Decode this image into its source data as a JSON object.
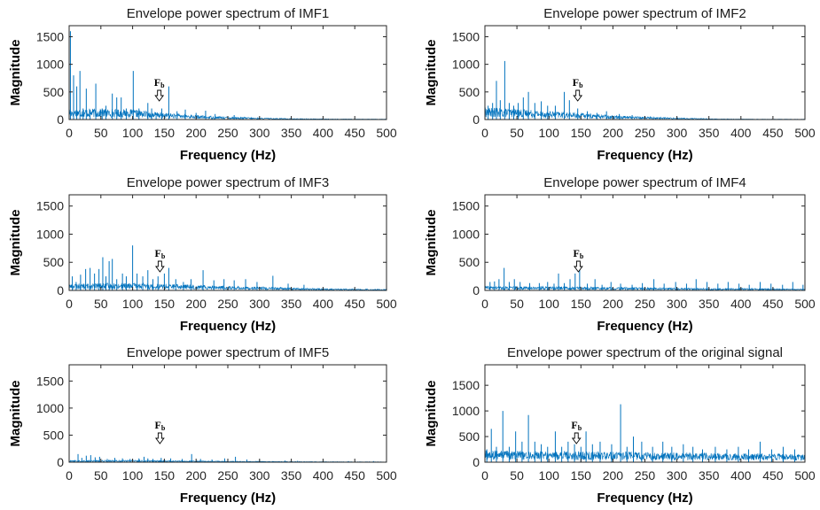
{
  "chart_data": [
    {
      "type": "line",
      "title": "Envelope power spectrum of IMF1",
      "xlabel": "Frequency (Hz)",
      "ylabel": "Magnitude",
      "xlim": [
        0,
        500
      ],
      "ylim": [
        0,
        1700
      ],
      "xticks": [
        "0",
        "50",
        "100",
        "150",
        "200",
        "250",
        "300",
        "350",
        "400",
        "450",
        "500"
      ],
      "yticks": [
        "0",
        "500",
        "1000",
        "1500"
      ],
      "color": "#0072bd",
      "noise_floor": [
        [
          0,
          160
        ],
        [
          50,
          150
        ],
        [
          100,
          140
        ],
        [
          150,
          95
        ],
        [
          200,
          60
        ],
        [
          250,
          40
        ],
        [
          300,
          25
        ],
        [
          350,
          15
        ],
        [
          400,
          10
        ],
        [
          450,
          8
        ],
        [
          500,
          6
        ]
      ],
      "peaks": [
        [
          2,
          1600
        ],
        [
          7,
          800
        ],
        [
          12,
          600
        ],
        [
          17,
          880
        ],
        [
          22,
          200
        ],
        [
          27,
          560
        ],
        [
          33,
          180
        ],
        [
          42,
          650
        ],
        [
          52,
          200
        ],
        [
          58,
          250
        ],
        [
          68,
          470
        ],
        [
          75,
          400
        ],
        [
          82,
          400
        ],
        [
          90,
          200
        ],
        [
          101,
          880
        ],
        [
          110,
          200
        ],
        [
          124,
          300
        ],
        [
          130,
          200
        ],
        [
          137,
          120
        ],
        [
          146,
          200
        ],
        [
          157,
          600
        ],
        [
          170,
          150
        ],
        [
          183,
          180
        ],
        [
          200,
          120
        ],
        [
          215,
          160
        ],
        [
          230,
          100
        ],
        [
          260,
          80
        ]
      ],
      "annotation": {
        "label": "F",
        "sub": "b",
        "x": 142
      }
    },
    {
      "type": "line",
      "title": "Envelope power spectrum of IMF2",
      "xlabel": "Frequency (Hz)",
      "ylabel": "Magnitude",
      "xlim": [
        0,
        500
      ],
      "ylim": [
        0,
        1700
      ],
      "xticks": [
        "0",
        "50",
        "100",
        "150",
        "200",
        "250",
        "300",
        "350",
        "400",
        "450",
        "500"
      ],
      "yticks": [
        "0",
        "500",
        "1000",
        "1500"
      ],
      "color": "#0072bd",
      "noise_floor": [
        [
          0,
          170
        ],
        [
          50,
          150
        ],
        [
          100,
          120
        ],
        [
          150,
          90
        ],
        [
          200,
          60
        ],
        [
          250,
          40
        ],
        [
          300,
          25
        ],
        [
          350,
          12
        ],
        [
          400,
          8
        ],
        [
          450,
          6
        ],
        [
          500,
          5
        ]
      ],
      "peaks": [
        [
          5,
          250
        ],
        [
          12,
          300
        ],
        [
          18,
          700
        ],
        [
          24,
          350
        ],
        [
          31,
          1060
        ],
        [
          38,
          300
        ],
        [
          45,
          250
        ],
        [
          52,
          300
        ],
        [
          60,
          400
        ],
        [
          68,
          500
        ],
        [
          78,
          300
        ],
        [
          88,
          330
        ],
        [
          98,
          250
        ],
        [
          110,
          250
        ],
        [
          124,
          500
        ],
        [
          132,
          350
        ],
        [
          145,
          200
        ],
        [
          160,
          150
        ],
        [
          175,
          120
        ],
        [
          190,
          150
        ],
        [
          210,
          100
        ],
        [
          230,
          80
        ]
      ],
      "annotation": {
        "label": "F",
        "sub": "b",
        "x": 145
      }
    },
    {
      "type": "line",
      "title": "Envelope power spectrum of IMF3",
      "xlabel": "Frequency (Hz)",
      "ylabel": "Magnitude",
      "xlim": [
        0,
        500
      ],
      "ylim": [
        0,
        1700
      ],
      "xticks": [
        "0",
        "50",
        "100",
        "150",
        "200",
        "250",
        "300",
        "350",
        "400",
        "450",
        "500"
      ],
      "yticks": [
        "0",
        "500",
        "1000",
        "1500"
      ],
      "color": "#0072bd",
      "noise_floor": [
        [
          0,
          90
        ],
        [
          50,
          100
        ],
        [
          100,
          100
        ],
        [
          150,
          90
        ],
        [
          200,
          80
        ],
        [
          250,
          60
        ],
        [
          300,
          50
        ],
        [
          350,
          35
        ],
        [
          400,
          25
        ],
        [
          450,
          20
        ],
        [
          500,
          15
        ]
      ],
      "peaks": [
        [
          5,
          250
        ],
        [
          11,
          150
        ],
        [
          18,
          280
        ],
        [
          26,
          380
        ],
        [
          33,
          400
        ],
        [
          40,
          300
        ],
        [
          47,
          380
        ],
        [
          53,
          590
        ],
        [
          58,
          250
        ],
        [
          63,
          520
        ],
        [
          68,
          560
        ],
        [
          75,
          200
        ],
        [
          84,
          300
        ],
        [
          90,
          250
        ],
        [
          100,
          800
        ],
        [
          107,
          300
        ],
        [
          116,
          250
        ],
        [
          124,
          360
        ],
        [
          132,
          200
        ],
        [
          140,
          250
        ],
        [
          150,
          300
        ],
        [
          157,
          400
        ],
        [
          168,
          200
        ],
        [
          180,
          150
        ],
        [
          192,
          200
        ],
        [
          211,
          360
        ],
        [
          228,
          180
        ],
        [
          244,
          200
        ],
        [
          260,
          180
        ],
        [
          278,
          200
        ],
        [
          296,
          150
        ],
        [
          321,
          260
        ],
        [
          345,
          120
        ],
        [
          370,
          100
        ]
      ],
      "annotation": {
        "label": "F",
        "sub": "b",
        "x": 143
      }
    },
    {
      "type": "line",
      "title": "Envelope power spectrum of IMF4",
      "xlabel": "Frequency (Hz)",
      "ylabel": "Magnitude",
      "xlim": [
        0,
        500
      ],
      "ylim": [
        0,
        1700
      ],
      "xticks": [
        "0",
        "50",
        "100",
        "150",
        "200",
        "250",
        "300",
        "350",
        "400",
        "450",
        "500"
      ],
      "yticks": [
        "0",
        "500",
        "1000",
        "1500"
      ],
      "color": "#0072bd",
      "noise_floor": [
        [
          0,
          60
        ],
        [
          50,
          55
        ],
        [
          100,
          55
        ],
        [
          150,
          50
        ],
        [
          200,
          45
        ],
        [
          250,
          40
        ],
        [
          300,
          35
        ],
        [
          350,
          30
        ],
        [
          400,
          30
        ],
        [
          450,
          25
        ],
        [
          500,
          20
        ]
      ],
      "peaks": [
        [
          8,
          150
        ],
        [
          15,
          160
        ],
        [
          22,
          200
        ],
        [
          30,
          400
        ],
        [
          38,
          150
        ],
        [
          46,
          200
        ],
        [
          55,
          150
        ],
        [
          70,
          130
        ],
        [
          85,
          130
        ],
        [
          98,
          150
        ],
        [
          108,
          120
        ],
        [
          115,
          300
        ],
        [
          124,
          130
        ],
        [
          133,
          200
        ],
        [
          141,
          300
        ],
        [
          148,
          380
        ],
        [
          160,
          120
        ],
        [
          172,
          200
        ],
        [
          183,
          100
        ],
        [
          197,
          150
        ],
        [
          212,
          120
        ],
        [
          230,
          100
        ],
        [
          246,
          130
        ],
        [
          264,
          200
        ],
        [
          280,
          120
        ],
        [
          298,
          150
        ],
        [
          315,
          120
        ],
        [
          330,
          200
        ],
        [
          347,
          150
        ],
        [
          364,
          120
        ],
        [
          380,
          150
        ],
        [
          397,
          120
        ],
        [
          413,
          100
        ],
        [
          430,
          150
        ],
        [
          447,
          120
        ],
        [
          465,
          100
        ],
        [
          481,
          150
        ],
        [
          497,
          100
        ]
      ],
      "annotation": {
        "label": "F",
        "sub": "b",
        "x": 146
      }
    },
    {
      "type": "line",
      "title": "Envelope power spectrum of IMF5",
      "xlabel": "Frequency (Hz)",
      "ylabel": "Magnitude",
      "xlim": [
        0,
        500
      ],
      "ylim": [
        0,
        1800
      ],
      "xticks": [
        "0",
        "50",
        "100",
        "150",
        "200",
        "250",
        "300",
        "350",
        "400",
        "450",
        "500"
      ],
      "yticks": [
        "0",
        "500",
        "1000",
        "1500"
      ],
      "color": "#0072bd",
      "noise_floor": [
        [
          0,
          25
        ],
        [
          50,
          30
        ],
        [
          100,
          30
        ],
        [
          150,
          25
        ],
        [
          200,
          20
        ],
        [
          250,
          15
        ],
        [
          300,
          12
        ],
        [
          350,
          10
        ],
        [
          400,
          8
        ],
        [
          450,
          6
        ],
        [
          500,
          5
        ]
      ],
      "peaks": [
        [
          14,
          150
        ],
        [
          20,
          80
        ],
        [
          27,
          120
        ],
        [
          34,
          130
        ],
        [
          41,
          90
        ],
        [
          48,
          100
        ],
        [
          60,
          60
        ],
        [
          72,
          80
        ],
        [
          84,
          70
        ],
        [
          96,
          60
        ],
        [
          110,
          70
        ],
        [
          118,
          100
        ],
        [
          124,
          70
        ],
        [
          132,
          60
        ],
        [
          145,
          80
        ],
        [
          160,
          70
        ],
        [
          178,
          60
        ],
        [
          193,
          150
        ],
        [
          207,
          60
        ],
        [
          225,
          50
        ],
        [
          245,
          70
        ],
        [
          262,
          100
        ],
        [
          280,
          50
        ],
        [
          300,
          40
        ],
        [
          340,
          30
        ],
        [
          360,
          25
        ],
        [
          400,
          20
        ],
        [
          440,
          20
        ],
        [
          480,
          20
        ]
      ],
      "annotation": {
        "label": "F",
        "sub": "b",
        "x": 143
      }
    },
    {
      "type": "line",
      "title": "Envelope power spectrum of the original signal",
      "xlabel": "Frequency (Hz)",
      "ylabel": "Magnitude",
      "xlim": [
        0,
        500
      ],
      "ylim": [
        0,
        1900
      ],
      "xticks": [
        "0",
        "50",
        "100",
        "150",
        "200",
        "250",
        "300",
        "350",
        "400",
        "450",
        "500"
      ],
      "yticks": [
        "0",
        "500",
        "1000",
        "1500"
      ],
      "color": "#0072bd",
      "noise_floor": [
        [
          0,
          180
        ],
        [
          50,
          170
        ],
        [
          100,
          170
        ],
        [
          150,
          160
        ],
        [
          200,
          160
        ],
        [
          250,
          150
        ],
        [
          300,
          150
        ],
        [
          350,
          140
        ],
        [
          400,
          130
        ],
        [
          450,
          130
        ],
        [
          500,
          120
        ]
      ],
      "peaks": [
        [
          3,
          250
        ],
        [
          10,
          650
        ],
        [
          18,
          300
        ],
        [
          28,
          1000
        ],
        [
          38,
          300
        ],
        [
          48,
          600
        ],
        [
          58,
          400
        ],
        [
          68,
          920
        ],
        [
          78,
          400
        ],
        [
          88,
          350
        ],
        [
          98,
          300
        ],
        [
          110,
          600
        ],
        [
          120,
          300
        ],
        [
          130,
          400
        ],
        [
          140,
          350
        ],
        [
          150,
          300
        ],
        [
          158,
          600
        ],
        [
          168,
          350
        ],
        [
          180,
          400
        ],
        [
          198,
          350
        ],
        [
          212,
          1130
        ],
        [
          222,
          300
        ],
        [
          232,
          500
        ],
        [
          245,
          400
        ],
        [
          262,
          300
        ],
        [
          278,
          400
        ],
        [
          292,
          300
        ],
        [
          310,
          350
        ],
        [
          325,
          300
        ],
        [
          340,
          250
        ],
        [
          360,
          300
        ],
        [
          378,
          250
        ],
        [
          396,
          300
        ],
        [
          412,
          250
        ],
        [
          430,
          400
        ],
        [
          448,
          250
        ],
        [
          466,
          300
        ],
        [
          484,
          250
        ]
      ],
      "annotation": {
        "label": "F",
        "sub": "b",
        "x": 143
      }
    }
  ]
}
